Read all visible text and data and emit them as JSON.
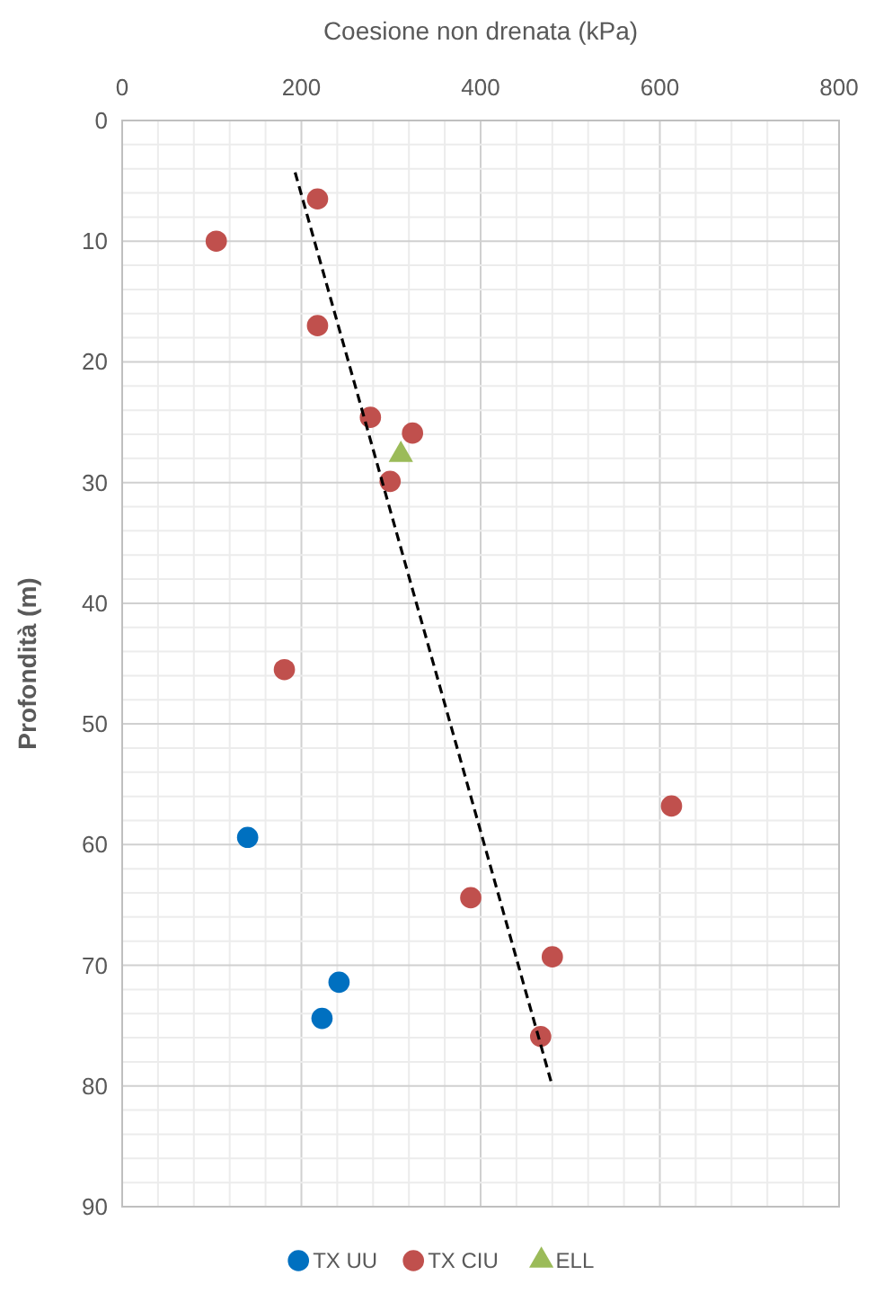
{
  "chart_data": {
    "type": "scatter",
    "xlabel": "Coesione  non drenata (kPa)",
    "ylabel": "Profondità (m)",
    "xlim": [
      0,
      800
    ],
    "xticks": [
      0,
      200,
      400,
      600,
      800
    ],
    "ylim": [
      90,
      0
    ],
    "yticks": [
      0,
      10,
      20,
      30,
      40,
      50,
      60,
      70,
      80,
      90
    ],
    "grid": true,
    "legend": "bottom",
    "marker": "circle",
    "series": [
      {
        "name": "TX UU",
        "color": "#0070c0",
        "x": [
          140,
          242,
          223
        ],
        "values": [
          59.4,
          71.4,
          74.4
        ]
      },
      {
        "name": "TX CIU",
        "color": "#c0504d",
        "x": [
          218,
          105,
          218,
          277,
          324,
          299,
          181,
          613,
          389,
          480,
          467
        ],
        "values": [
          6.5,
          10,
          17,
          24.6,
          25.9,
          29.9,
          45.5,
          56.8,
          64.4,
          69.3,
          75.9
        ]
      },
      {
        "name": "ELL",
        "color": "#9bbb59",
        "marker": "triangle",
        "x": [
          311
        ],
        "values": [
          27.7
        ]
      },
      {
        "type": "line",
        "color": "#000000",
        "line_style": "dashed",
        "marker": "none",
        "x": [
          193,
          480
        ],
        "values": [
          4.3,
          80
        ]
      }
    ]
  }
}
